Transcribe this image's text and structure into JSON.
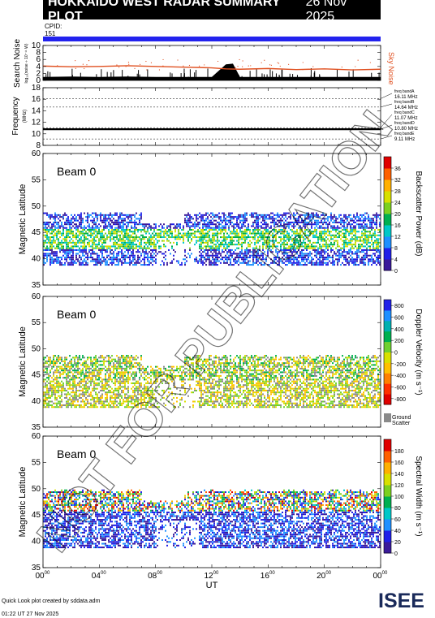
{
  "header": {
    "title": "HOKKAIDO WEST RADAR SUMMARY PLOT",
    "date": "26 Nov 2025"
  },
  "cpid": {
    "label": "CPID:",
    "value": "151"
  },
  "noise_panel": {
    "ylabel": "Search Noise",
    "ylabel_sub": "log₁₀(noise ÷ 10⁻¹¹ W)",
    "right_label": "Sky Noise",
    "yticks": [
      "0",
      "2",
      "4",
      "6",
      "8",
      "10"
    ]
  },
  "freq_panel": {
    "ylabel": "Frequency",
    "ylabel_unit": "(MHz)",
    "yticks": [
      "8",
      "10",
      "12",
      "14",
      "16",
      "18"
    ],
    "bands": [
      {
        "name": "freq bandA",
        "value": "16.11 MHz"
      },
      {
        "name": "freq bandB",
        "value": "14.64 MHz"
      },
      {
        "name": "freq bandC",
        "value": "11.07 MHz"
      },
      {
        "name": "freq bandD",
        "value": "10.80 MHz"
      },
      {
        "name": "freq bandE",
        "value": "9.11 MHz"
      }
    ]
  },
  "panels": [
    {
      "beam_label": "Beam  0",
      "ylabel": "Magnetic Latitude",
      "yticks": [
        "35",
        "40",
        "45",
        "50",
        "55",
        "60"
      ],
      "colorbar_label": "Backscatter Power (dB)",
      "colorbar_ticks": [
        "0",
        "4",
        "8",
        "12",
        "16",
        "20",
        "24",
        "28",
        "32",
        "36"
      ],
      "colorscale": [
        "#3a1a9a",
        "#2020e8",
        "#1e90ff",
        "#00c8c8",
        "#00b050",
        "#7cd020",
        "#d8e000",
        "#ffb000",
        "#ff6000",
        "#e00000"
      ]
    },
    {
      "beam_label": "Beam  0",
      "ylabel": "Magnetic Latitude",
      "yticks": [
        "35",
        "40",
        "45",
        "50",
        "55",
        "60"
      ],
      "colorbar_label": "Doppler Velocity (m s⁻¹)",
      "colorbar_ticks": [
        "800",
        "600",
        "400",
        "200",
        "0",
        "-200",
        "-400",
        "-600",
        "-800"
      ],
      "ground_scatter_label": [
        "Ground",
        "Scatter"
      ],
      "colorscale": [
        "#2020e8",
        "#1e90ff",
        "#00b0b0",
        "#00b050",
        "#70d030",
        "#d8e000",
        "#ffc000",
        "#ff8000",
        "#ff3000",
        "#e00000"
      ]
    },
    {
      "beam_label": "Beam  0",
      "ylabel": "Magnetic Latitude",
      "yticks": [
        "35",
        "40",
        "45",
        "50",
        "55",
        "60"
      ],
      "colorbar_label": "Spectral Width (m s⁻¹)",
      "colorbar_ticks": [
        "0",
        "20",
        "40",
        "60",
        "80",
        "100",
        "120",
        "140",
        "160",
        "180"
      ],
      "colorscale": [
        "#3a1a9a",
        "#2020e8",
        "#1e90ff",
        "#00c8c8",
        "#00b050",
        "#7cd020",
        "#d8e000",
        "#ffb000",
        "#ff6000",
        "#e00000"
      ]
    }
  ],
  "xaxis": {
    "label": "UT",
    "ticks": [
      {
        "hh": "00",
        "mm": "00"
      },
      {
        "hh": "04",
        "mm": "00"
      },
      {
        "hh": "08",
        "mm": "00"
      },
      {
        "hh": "12",
        "mm": "00"
      },
      {
        "hh": "16",
        "mm": "00"
      },
      {
        "hh": "20",
        "mm": "00"
      },
      {
        "hh": "00",
        "mm": "00"
      }
    ]
  },
  "watermark": "NOT FOR PUBLICATION",
  "footer": {
    "credit": "Quick Look plot created by sddata.adm",
    "timestamp": "01:22 UT 27 Nov 2025"
  },
  "logo": {
    "text": "ISEE"
  },
  "chart_data": [
    {
      "type": "line",
      "title": "",
      "ylabel": "Search Noise",
      "ylim": [
        0,
        10
      ],
      "xlim_hours": [
        0,
        24
      ],
      "series": [
        {
          "name": "Sky Noise",
          "x_hours": [
            0,
            2,
            4,
            6,
            8,
            10,
            12,
            13,
            14,
            16,
            18,
            20,
            22,
            24
          ],
          "values": [
            4.1,
            3.9,
            4.0,
            4.2,
            4.0,
            3.8,
            3.6,
            3.3,
            3.2,
            3.4,
            3.1,
            3.3,
            3.0,
            3.2
          ]
        },
        {
          "name": "Search Noise",
          "x_hours": [
            0,
            2,
            4,
            6,
            8,
            10,
            12,
            13,
            13.5,
            14,
            16,
            18,
            20,
            22,
            24
          ],
          "values": [
            1.0,
            1.1,
            1.0,
            1.1,
            1.0,
            1.0,
            1.0,
            4.6,
            4.8,
            1.0,
            1.0,
            1.0,
            1.0,
            1.0,
            1.0
          ]
        }
      ]
    },
    {
      "type": "scatter",
      "ylabel": "Frequency",
      "ylim": [
        8,
        18
      ],
      "xlim_hours": [
        0,
        24
      ],
      "series": [
        {
          "name": "Frequency",
          "x_hours": [
            0,
            6,
            12,
            18,
            24
          ],
          "values": [
            10.8,
            10.8,
            10.8,
            10.8,
            10.8
          ]
        }
      ]
    },
    {
      "type": "heatmap",
      "ylabel": "Magnetic Latitude",
      "ylim": [
        35,
        60
      ],
      "xlim_hours": [
        0,
        24
      ],
      "zlabel": "Backscatter Power (dB)",
      "zlim": [
        0,
        36
      ],
      "echo_region": {
        "lat_range": [
          39,
          49
        ],
        "time_range_hours": [
          0,
          24
        ]
      }
    },
    {
      "type": "heatmap",
      "ylabel": "Magnetic Latitude",
      "ylim": [
        35,
        60
      ],
      "xlim_hours": [
        0,
        24
      ],
      "zlabel": "Doppler Velocity (m s⁻¹)",
      "zlim": [
        -800,
        800
      ],
      "echo_region": {
        "lat_range": [
          39,
          49
        ],
        "time_range_hours": [
          0,
          24
        ]
      }
    },
    {
      "type": "heatmap",
      "ylabel": "Magnetic Latitude",
      "ylim": [
        35,
        60
      ],
      "xlim_hours": [
        0,
        24
      ],
      "zlabel": "Spectral Width (m s⁻¹)",
      "zlim": [
        0,
        180
      ],
      "echo_region": {
        "lat_range": [
          39,
          50
        ],
        "time_range_hours": [
          0,
          24
        ]
      }
    }
  ]
}
